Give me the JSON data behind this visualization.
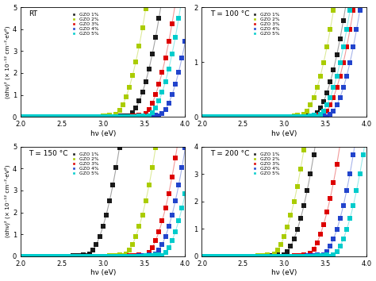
{
  "panels": [
    {
      "label": "RT",
      "ylim": [
        0,
        5
      ],
      "yticks": [
        0,
        1,
        2,
        3,
        4,
        5
      ],
      "series": [
        {
          "name": "GZO 1%",
          "color": "#1a1a1a",
          "Eg": 3.28,
          "scale": 28.0
        },
        {
          "name": "GZO 2%",
          "color": "#aacc00",
          "Eg": 3.1,
          "scale": 28.0
        },
        {
          "name": "GZO 3%",
          "color": "#dd0000",
          "Eg": 3.45,
          "scale": 28.0
        },
        {
          "name": "GZO 4%",
          "color": "#2244cc",
          "Eg": 3.65,
          "scale": 28.0
        },
        {
          "name": "GZO 5%",
          "color": "#00cccc",
          "Eg": 3.52,
          "scale": 28.0
        }
      ]
    },
    {
      "label": "T = 100 °C",
      "ylim": [
        0,
        2
      ],
      "yticks": [
        0,
        1,
        2
      ],
      "series": [
        {
          "name": "GZO 1%",
          "color": "#1a1a1a",
          "Eg": 3.32,
          "scale": 11.0
        },
        {
          "name": "GZO 2%",
          "color": "#aacc00",
          "Eg": 3.18,
          "scale": 11.0
        },
        {
          "name": "GZO 3%",
          "color": "#dd0000",
          "Eg": 3.42,
          "scale": 11.0
        },
        {
          "name": "GZO 4%",
          "color": "#2244cc",
          "Eg": 3.5,
          "scale": 11.0
        },
        {
          "name": "GZO 5%",
          "color": "#00cccc",
          "Eg": 3.38,
          "scale": 11.0
        }
      ]
    },
    {
      "label": "T = 150 °C",
      "ylim": [
        0,
        5
      ],
      "yticks": [
        0,
        1,
        2,
        3,
        4,
        5
      ],
      "series": [
        {
          "name": "GZO 1%",
          "color": "#1a1a1a",
          "Eg": 2.78,
          "scale": 28.0
        },
        {
          "name": "GZO 2%",
          "color": "#aacc00",
          "Eg": 3.22,
          "scale": 28.0
        },
        {
          "name": "GZO 3%",
          "color": "#dd0000",
          "Eg": 3.48,
          "scale": 28.0
        },
        {
          "name": "GZO 4%",
          "color": "#2244cc",
          "Eg": 3.58,
          "scale": 28.0
        },
        {
          "name": "GZO 5%",
          "color": "#00cccc",
          "Eg": 3.68,
          "scale": 28.0
        }
      ]
    },
    {
      "label": "T = 200 °C",
      "ylim": [
        0,
        4
      ],
      "yticks": [
        0,
        1,
        2,
        3,
        4
      ],
      "series": [
        {
          "name": "GZO 1%",
          "color": "#1a1a1a",
          "Eg": 2.95,
          "scale": 22.0
        },
        {
          "name": "GZO 2%",
          "color": "#aacc00",
          "Eg": 2.82,
          "scale": 22.0
        },
        {
          "name": "GZO 3%",
          "color": "#dd0000",
          "Eg": 3.25,
          "scale": 22.0
        },
        {
          "name": "GZO 4%",
          "color": "#2244cc",
          "Eg": 3.43,
          "scale": 22.0
        },
        {
          "name": "GZO 5%",
          "color": "#00cccc",
          "Eg": 3.55,
          "scale": 22.0
        }
      ]
    }
  ],
  "xlim": [
    2.0,
    4.0
  ],
  "xticks": [
    2.0,
    2.5,
    3.0,
    3.5,
    4.0
  ],
  "xlabel": "hν (eV)",
  "ylabel_left": "(αhν)² (× 10⁻¹² cm⁻²·eV²)",
  "marker": "s",
  "markersize": 4.5,
  "bg_color": "#ffffff"
}
